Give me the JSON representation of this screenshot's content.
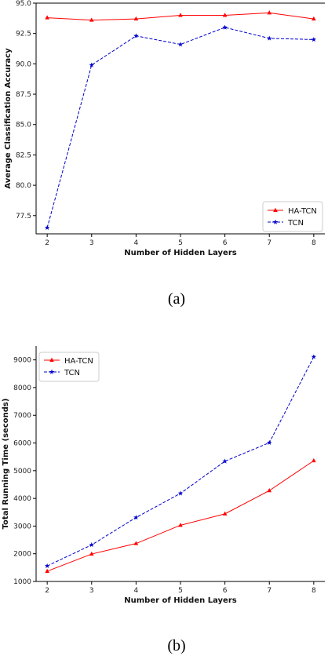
{
  "chart_data": [
    {
      "type": "line",
      "caption": "(a)",
      "xlabel": "Number of Hidden Layers",
      "ylabel": "Average Classification Accuracy",
      "x": [
        2,
        3,
        4,
        5,
        6,
        7,
        8
      ],
      "xticks": [
        "2",
        "3",
        "4",
        "5",
        "6",
        "7",
        "8"
      ],
      "yticks": [
        "77.5",
        "80.0",
        "82.5",
        "85.0",
        "87.5",
        "90.0",
        "92.5",
        "95.0"
      ],
      "ytick_values": [
        77.5,
        80.0,
        82.5,
        85.0,
        87.5,
        90.0,
        92.5,
        95.0
      ],
      "xlim": [
        1.75,
        8.25
      ],
      "ylim": [
        76.0,
        95.0
      ],
      "grid": false,
      "legend_position": "bottom-right",
      "series": [
        {
          "name": "HA-TCN",
          "color": "#ff0000",
          "style": "solid",
          "marker": "triangle",
          "values": [
            93.8,
            93.6,
            93.7,
            94.0,
            94.0,
            94.2,
            93.7
          ]
        },
        {
          "name": "TCN",
          "color": "#0000cc",
          "style": "dashed",
          "marker": "star",
          "values": [
            76.5,
            89.9,
            92.3,
            91.6,
            93.0,
            92.1,
            92.0
          ]
        }
      ]
    },
    {
      "type": "line",
      "caption": "(b)",
      "xlabel": "Number of Hidden Layers",
      "ylabel": "Total Running Time (seconds)",
      "x": [
        2,
        3,
        4,
        5,
        6,
        7,
        8
      ],
      "xticks": [
        "2",
        "3",
        "4",
        "5",
        "6",
        "7",
        "8"
      ],
      "yticks": [
        "1000",
        "2000",
        "3000",
        "4000",
        "5000",
        "6000",
        "7000",
        "8000",
        "9000"
      ],
      "ytick_values": [
        1000,
        2000,
        3000,
        4000,
        5000,
        6000,
        7000,
        8000,
        9000
      ],
      "xlim": [
        1.75,
        8.25
      ],
      "ylim": [
        1000,
        9500
      ],
      "grid": false,
      "legend_position": "top-left",
      "series": [
        {
          "name": "HA-TCN",
          "color": "#ff0000",
          "style": "solid",
          "marker": "triangle",
          "values": [
            1370,
            1990,
            2370,
            3030,
            3440,
            4280,
            5360
          ]
        },
        {
          "name": "TCN",
          "color": "#0000cc",
          "style": "dashed",
          "marker": "star",
          "values": [
            1560,
            2320,
            3310,
            4180,
            5340,
            6010,
            9110
          ]
        }
      ]
    }
  ]
}
